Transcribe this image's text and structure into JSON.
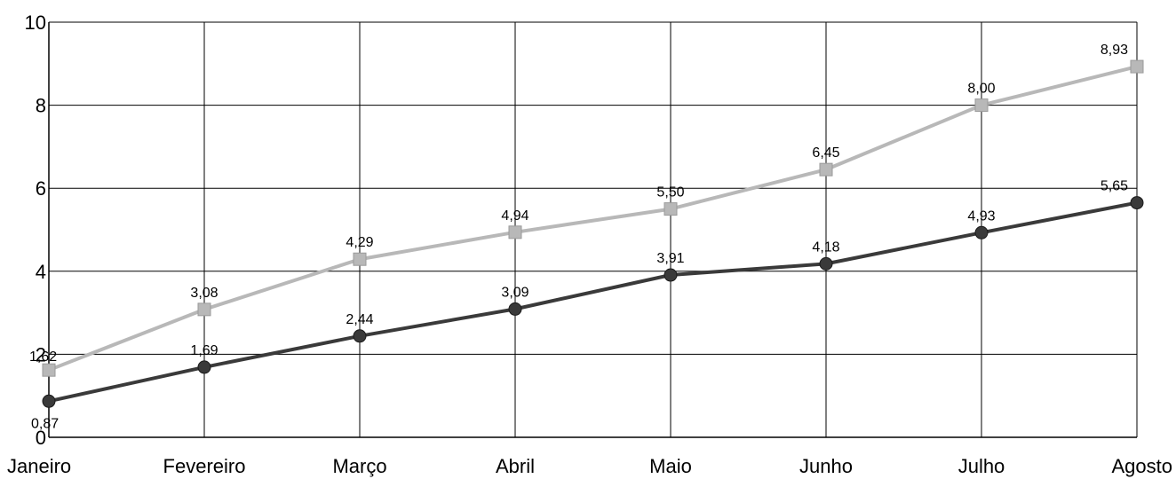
{
  "chart_data": {
    "type": "line",
    "title": "",
    "xlabel": "",
    "ylabel": "",
    "categories": [
      "Janeiro",
      "Fevereiro",
      "Março",
      "Abril",
      "Maio",
      "Junho",
      "Julho",
      "Agosto"
    ],
    "ylim": [
      0,
      10
    ],
    "yticks": [
      "0",
      "2",
      "4",
      "6",
      "8",
      "10"
    ],
    "grid": true,
    "legend": "none",
    "series": [
      {
        "values": [
          1.62,
          3.08,
          4.29,
          4.94,
          5.5,
          6.45,
          8.0,
          8.93
        ],
        "labels": [
          "1,62",
          "3,08",
          "4,29",
          "4,94",
          "5,50",
          "6,45",
          "8,00",
          "8,93"
        ],
        "color": "#b8b8b8",
        "marker": "square"
      },
      {
        "values": [
          0.87,
          1.69,
          2.44,
          3.09,
          3.91,
          4.18,
          4.93,
          5.65
        ],
        "labels": [
          "0,87",
          "1,69",
          "2,44",
          "3,09",
          "3,91",
          "4,18",
          "4,93",
          "5,65"
        ],
        "color": "#3a3a3a",
        "marker": "circle"
      }
    ]
  }
}
